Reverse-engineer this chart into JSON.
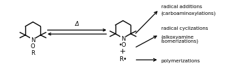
{
  "background_color": "#ffffff",
  "figsize": [
    3.57,
    1.16
  ],
  "dpi": 100,
  "text_color": "#000000",
  "delta_label": "Δ",
  "arrow_labels": [
    [
      "radical additions",
      "(carboaminoxylations)"
    ],
    [
      "radical cyclizations",
      "(alkoxyamine",
      "isomerizations)"
    ],
    [
      "polymerizations"
    ]
  ],
  "font_size_struct": 6.0,
  "font_size_label": 5.2
}
